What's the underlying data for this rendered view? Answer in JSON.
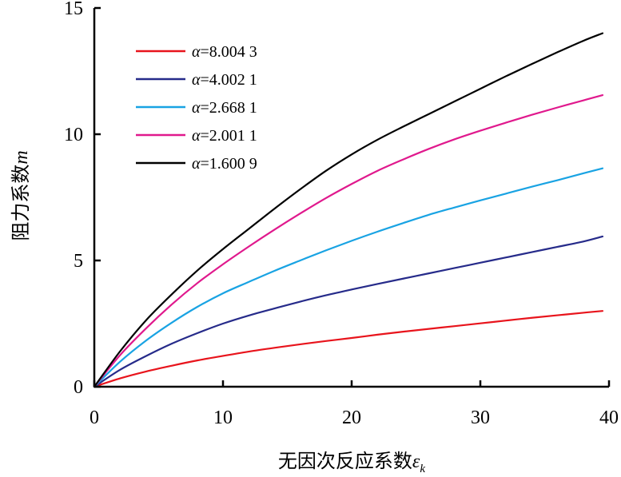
{
  "chart_data": {
    "type": "line",
    "title": "",
    "xlabel": "无因次反应系数",
    "xlabel_symbol": "ε",
    "xlabel_subscript": "k",
    "ylabel": "阻力系数",
    "ylabel_symbol": "m",
    "xlim": [
      0,
      40
    ],
    "ylim": [
      0,
      15
    ],
    "xticks": [
      "0",
      "10",
      "20",
      "30",
      "40"
    ],
    "yticks": [
      "0",
      "5",
      "10",
      "15"
    ],
    "xtick_values": [
      0,
      10,
      20,
      30,
      40
    ],
    "ytick_values": [
      0,
      5,
      10,
      15
    ],
    "grid": false,
    "legend_position": "top-left",
    "x": [
      0,
      2,
      4,
      6,
      8,
      10,
      12,
      14,
      16,
      18,
      20,
      22,
      24,
      26,
      28,
      30,
      32,
      34,
      36,
      38,
      39.5
    ],
    "series": [
      {
        "name": "α=8.004 3",
        "symbol": "α",
        "value_text": "=8.004 3",
        "color": "#e8141c",
        "values": [
          0,
          0.33,
          0.6,
          0.83,
          1.04,
          1.22,
          1.39,
          1.54,
          1.68,
          1.81,
          1.93,
          2.06,
          2.18,
          2.29,
          2.4,
          2.51,
          2.62,
          2.73,
          2.83,
          2.93,
          3.0
        ]
      },
      {
        "name": "α=4.002 1",
        "symbol": "α",
        "value_text": "=4.002 1",
        "color": "#262b8a",
        "values": [
          0,
          0.67,
          1.21,
          1.7,
          2.12,
          2.5,
          2.82,
          3.1,
          3.37,
          3.62,
          3.85,
          4.07,
          4.28,
          4.49,
          4.7,
          4.91,
          5.12,
          5.33,
          5.54,
          5.75,
          5.95
        ]
      },
      {
        "name": "α=2.668 1",
        "symbol": "α",
        "value_text": "=2.668 1",
        "color": "#19a3e3",
        "values": [
          0,
          0.99,
          1.82,
          2.53,
          3.16,
          3.7,
          4.15,
          4.59,
          5.0,
          5.4,
          5.78,
          6.14,
          6.48,
          6.81,
          7.1,
          7.38,
          7.65,
          7.92,
          8.18,
          8.45,
          8.65
        ]
      },
      {
        "name": "α=2.001 1",
        "symbol": "α",
        "value_text": "=2.001 1",
        "color": "#e0198d",
        "values": [
          0,
          1.25,
          2.3,
          3.25,
          4.1,
          4.85,
          5.55,
          6.22,
          6.86,
          7.47,
          8.03,
          8.55,
          9.0,
          9.42,
          9.8,
          10.14,
          10.46,
          10.77,
          11.06,
          11.34,
          11.55
        ]
      },
      {
        "name": "α=1.600 9",
        "symbol": "α",
        "value_text": "=1.600 9",
        "color": "#000000",
        "values": [
          0,
          1.4,
          2.62,
          3.65,
          4.6,
          5.45,
          6.25,
          7.05,
          7.82,
          8.55,
          9.2,
          9.78,
          10.3,
          10.8,
          11.3,
          11.8,
          12.3,
          12.78,
          13.25,
          13.7,
          14.0
        ]
      }
    ]
  }
}
